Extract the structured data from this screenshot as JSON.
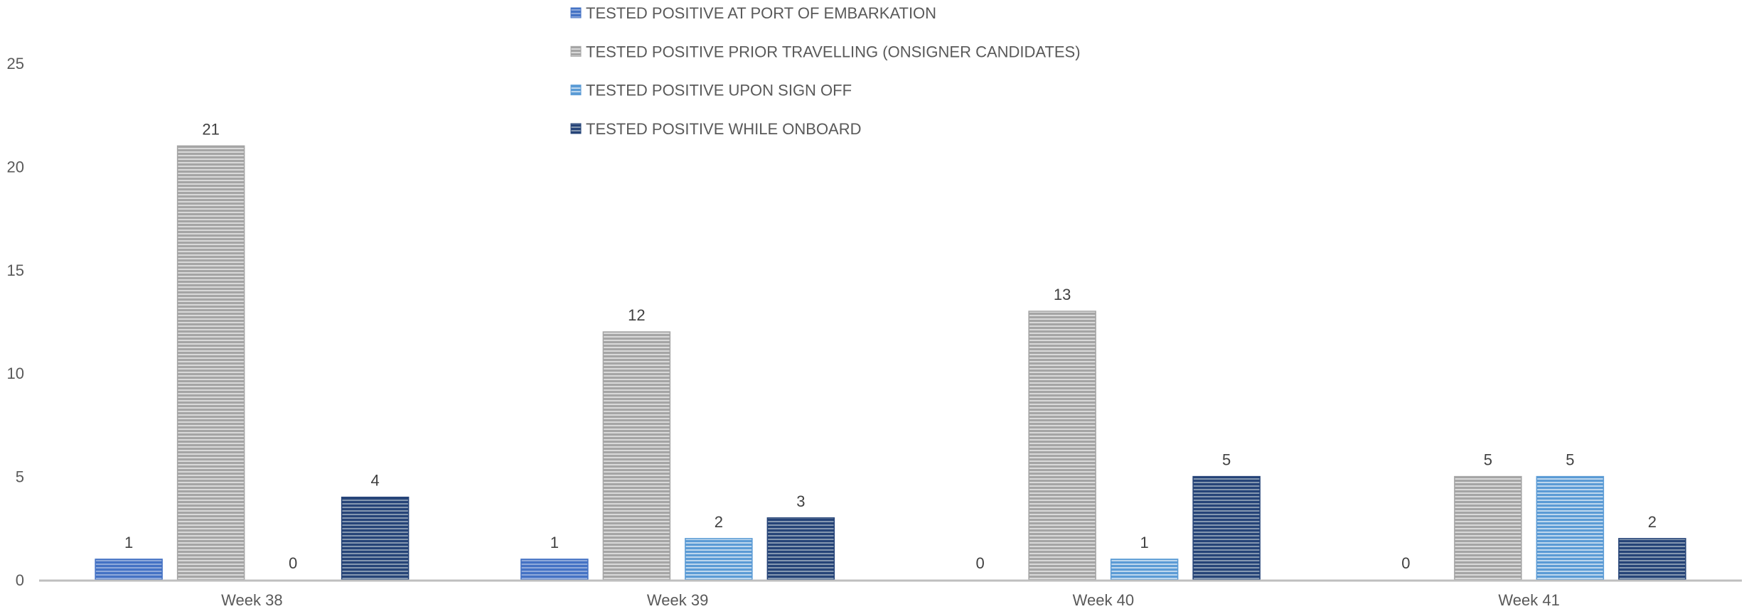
{
  "chart_data": {
    "type": "bar",
    "categories": [
      "Week 38",
      "Week 39",
      "Week 40",
      "Week 41"
    ],
    "series": [
      {
        "name": "TESTED POSITIVE AT PORT OF EMBARKATION",
        "values": [
          1,
          1,
          0,
          0
        ],
        "color": "#4472C4",
        "stripe": "#8EA9DB"
      },
      {
        "name": "TESTED POSITIVE PRIOR TRAVELLING (ONSIGNER CANDIDATES)",
        "values": [
          21,
          12,
          13,
          5
        ],
        "color": "#A5A5A5",
        "stripe": "#D9D9D9"
      },
      {
        "name": "TESTED POSITIVE UPON SIGN OFF",
        "values": [
          0,
          2,
          1,
          5
        ],
        "color": "#5B9BD5",
        "stripe": "#BDD7EE"
      },
      {
        "name": "TESTED POSITIVE WHILE ONBOARD",
        "values": [
          4,
          3,
          5,
          2
        ],
        "color": "#264478",
        "stripe": "#8497B0"
      }
    ],
    "ylim": [
      0,
      25
    ],
    "yticks": [
      0,
      5,
      10,
      15,
      20,
      25
    ],
    "grid": false,
    "legend": "top-center",
    "data_labels": true
  }
}
